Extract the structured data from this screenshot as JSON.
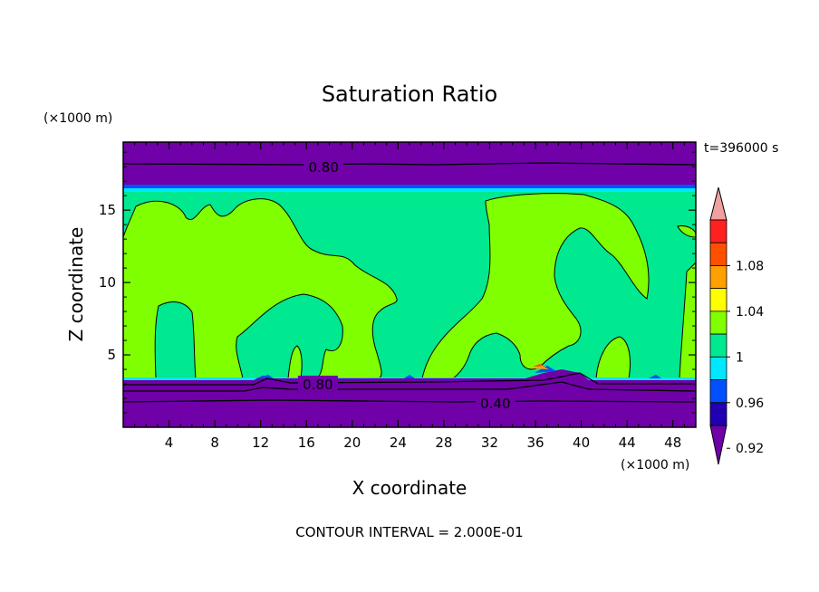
{
  "chart_data": {
    "type": "heatmap",
    "title": "Saturation Ratio",
    "xlabel": "X coordinate",
    "ylabel": "Z coordinate",
    "x_unit": "(×1000 m)",
    "y_unit": "(×1000 m)",
    "time_label": "t=396000 s",
    "footer": "CONTOUR INTERVAL = 2.000E-01",
    "xlim": [
      0,
      50
    ],
    "ylim": [
      0,
      19.7
    ],
    "xticks": [
      4,
      8,
      12,
      16,
      20,
      24,
      28,
      32,
      36,
      40,
      44,
      48
    ],
    "yticks": [
      5,
      10,
      15
    ],
    "contour_labels": [
      {
        "text": "0.80",
        "x": 17.5,
        "y": 18.0
      },
      {
        "text": "0.80",
        "x": 17.0,
        "y": 3.0
      },
      {
        "text": "0.40",
        "x": 32.5,
        "y": 1.7
      }
    ],
    "colorbar": {
      "ticks": [
        "1.08",
        "1.04",
        "1",
        "0.96",
        "0.92"
      ],
      "levels": [
        {
          "label": "<0.92",
          "color": "#7000a8"
        },
        {
          "label": "0.92-0.94",
          "color": "#2000b0"
        },
        {
          "label": "0.94-0.96",
          "color": "#0050ff"
        },
        {
          "label": "0.96-0.98",
          "color": "#00e8ff"
        },
        {
          "label": "0.98-1.00",
          "color": "#00e890"
        },
        {
          "label": "1.00-1.02",
          "color": "#80ff00"
        },
        {
          "label": "1.02-1.04",
          "color": "#ffff00"
        },
        {
          "label": "1.04-1.06",
          "color": "#ffa000"
        },
        {
          "label": "1.06-1.08",
          "color": "#ff5000"
        },
        {
          "label": "1.08-1.10",
          "color": "#ff2020"
        },
        {
          "label": ">1.10",
          "color": "#f0a0a0"
        }
      ]
    }
  }
}
